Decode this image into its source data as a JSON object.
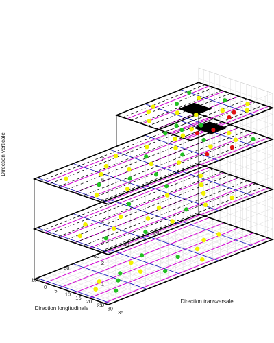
{
  "chart_data": {
    "type": "scatter",
    "projection": "3d",
    "xlabel": "Direction longitudinale",
    "ylabel": "Direction transversale",
    "zlabel": "Direction verticale",
    "xlim": [
      0,
      110
    ],
    "ylim": [
      0,
      35
    ],
    "zlim": [
      0,
      7
    ],
    "xticks": [
      20,
      40,
      60,
      80,
      100
    ],
    "yticks": [
      0,
      5,
      10,
      15,
      20,
      25,
      30,
      35
    ],
    "zticks": [
      0,
      1,
      2,
      3,
      4,
      5,
      6,
      7
    ],
    "grid": true,
    "floors": [
      {
        "z": 0,
        "x": [
          0,
          110
        ],
        "y": [
          0,
          35
        ]
      },
      {
        "z": 2.4,
        "x": [
          0,
          110
        ],
        "y": [
          0,
          35
        ]
      },
      {
        "z": 4.8,
        "x": [
          0,
          110
        ],
        "y": [
          0,
          35
        ]
      },
      {
        "z": 6.3,
        "x": [
          0,
          55
        ],
        "y": [
          0,
          35
        ]
      }
    ],
    "line_colors": {
      "longitudinal": "#d400d4",
      "transverse": "#1f1fbf",
      "dashed_rails": "#000000",
      "floor_outline": "#000000"
    },
    "point_categories": [
      {
        "key": "yellow",
        "color": "#f2f200"
      },
      {
        "key": "green",
        "color": "#22c022"
      },
      {
        "key": "red",
        "color": "#e01010"
      }
    ],
    "hatched_blocks": [
      {
        "z": 4.8,
        "x": [
          4,
          14
        ],
        "y": [
          8,
          16
        ],
        "color": "#000000"
      },
      {
        "z": 6.3,
        "x": [
          20,
          30
        ],
        "y": [
          12,
          20
        ],
        "color": "#000000"
      }
    ],
    "points": {
      "floor_0": [
        {
          "x": 12,
          "y": 18,
          "c": "yellow"
        },
        {
          "x": 22,
          "y": 18,
          "c": "yellow"
        },
        {
          "x": 32,
          "y": 22,
          "c": "yellow"
        },
        {
          "x": 45,
          "y": 22,
          "c": "green"
        },
        {
          "x": 55,
          "y": 12,
          "c": "green"
        },
        {
          "x": 62,
          "y": 28,
          "c": "green"
        },
        {
          "x": 70,
          "y": 22,
          "c": "yellow"
        },
        {
          "x": 78,
          "y": 18,
          "c": "green"
        },
        {
          "x": 85,
          "y": 22,
          "c": "green"
        },
        {
          "x": 92,
          "y": 18,
          "c": "yellow"
        },
        {
          "x": 95,
          "y": 28,
          "c": "green"
        },
        {
          "x": 100,
          "y": 22,
          "c": "yellow"
        },
        {
          "x": 40,
          "y": 30,
          "c": "yellow"
        },
        {
          "x": 65,
          "y": 14,
          "c": "yellow"
        }
      ],
      "floor_1": [
        {
          "x": 10,
          "y": 8,
          "c": "yellow"
        },
        {
          "x": 18,
          "y": 14,
          "c": "yellow"
        },
        {
          "x": 25,
          "y": 20,
          "c": "yellow"
        },
        {
          "x": 30,
          "y": 6,
          "c": "green"
        },
        {
          "x": 38,
          "y": 12,
          "c": "yellow"
        },
        {
          "x": 45,
          "y": 26,
          "c": "green"
        },
        {
          "x": 52,
          "y": 18,
          "c": "yellow"
        },
        {
          "x": 58,
          "y": 8,
          "c": "green"
        },
        {
          "x": 65,
          "y": 22,
          "c": "yellow"
        },
        {
          "x": 72,
          "y": 14,
          "c": "yellow"
        },
        {
          "x": 78,
          "y": 30,
          "c": "green"
        },
        {
          "x": 85,
          "y": 20,
          "c": "yellow"
        },
        {
          "x": 90,
          "y": 10,
          "c": "yellow"
        },
        {
          "x": 96,
          "y": 24,
          "c": "green"
        },
        {
          "x": 102,
          "y": 16,
          "c": "yellow"
        },
        {
          "x": 60,
          "y": 30,
          "c": "yellow"
        },
        {
          "x": 35,
          "y": 28,
          "c": "yellow"
        },
        {
          "x": 20,
          "y": 30,
          "c": "yellow"
        }
      ],
      "floor_2": [
        {
          "x": 6,
          "y": 30,
          "c": "green"
        },
        {
          "x": 8,
          "y": 20,
          "c": "yellow"
        },
        {
          "x": 12,
          "y": 26,
          "c": "yellow"
        },
        {
          "x": 16,
          "y": 8,
          "c": "yellow"
        },
        {
          "x": 20,
          "y": 30,
          "c": "red"
        },
        {
          "x": 22,
          "y": 18,
          "c": "green"
        },
        {
          "x": 26,
          "y": 24,
          "c": "yellow"
        },
        {
          "x": 30,
          "y": 10,
          "c": "yellow"
        },
        {
          "x": 34,
          "y": 28,
          "c": "red"
        },
        {
          "x": 38,
          "y": 16,
          "c": "yellow"
        },
        {
          "x": 42,
          "y": 22,
          "c": "green"
        },
        {
          "x": 46,
          "y": 8,
          "c": "yellow"
        },
        {
          "x": 50,
          "y": 26,
          "c": "yellow"
        },
        {
          "x": 55,
          "y": 14,
          "c": "green"
        },
        {
          "x": 60,
          "y": 20,
          "c": "yellow"
        },
        {
          "x": 64,
          "y": 6,
          "c": "yellow"
        },
        {
          "x": 68,
          "y": 28,
          "c": "green"
        },
        {
          "x": 72,
          "y": 18,
          "c": "yellow"
        },
        {
          "x": 76,
          "y": 10,
          "c": "yellow"
        },
        {
          "x": 80,
          "y": 24,
          "c": "green"
        },
        {
          "x": 85,
          "y": 14,
          "c": "yellow"
        },
        {
          "x": 90,
          "y": 30,
          "c": "yellow"
        },
        {
          "x": 95,
          "y": 20,
          "c": "green"
        },
        {
          "x": 100,
          "y": 8,
          "c": "yellow"
        },
        {
          "x": 105,
          "y": 26,
          "c": "yellow"
        },
        {
          "x": 10,
          "y": 14,
          "c": "red"
        },
        {
          "x": 18,
          "y": 12,
          "c": "red"
        },
        {
          "x": 28,
          "y": 4,
          "c": "green"
        }
      ],
      "floor_3": [
        {
          "x": 4,
          "y": 26,
          "c": "yellow"
        },
        {
          "x": 8,
          "y": 18,
          "c": "green"
        },
        {
          "x": 10,
          "y": 30,
          "c": "yellow"
        },
        {
          "x": 14,
          "y": 10,
          "c": "yellow"
        },
        {
          "x": 18,
          "y": 24,
          "c": "yellow"
        },
        {
          "x": 22,
          "y": 30,
          "c": "red"
        },
        {
          "x": 26,
          "y": 8,
          "c": "green"
        },
        {
          "x": 30,
          "y": 20,
          "c": "yellow"
        },
        {
          "x": 34,
          "y": 14,
          "c": "yellow"
        },
        {
          "x": 38,
          "y": 28,
          "c": "green"
        },
        {
          "x": 42,
          "y": 6,
          "c": "yellow"
        },
        {
          "x": 46,
          "y": 22,
          "c": "green"
        },
        {
          "x": 50,
          "y": 12,
          "c": "yellow"
        },
        {
          "x": 53,
          "y": 30,
          "c": "yellow"
        },
        {
          "x": 16,
          "y": 28,
          "c": "red"
        },
        {
          "x": 12,
          "y": 4,
          "c": "green"
        },
        {
          "x": 36,
          "y": 4,
          "c": "yellow"
        },
        {
          "x": 48,
          "y": 26,
          "c": "green"
        }
      ]
    }
  }
}
